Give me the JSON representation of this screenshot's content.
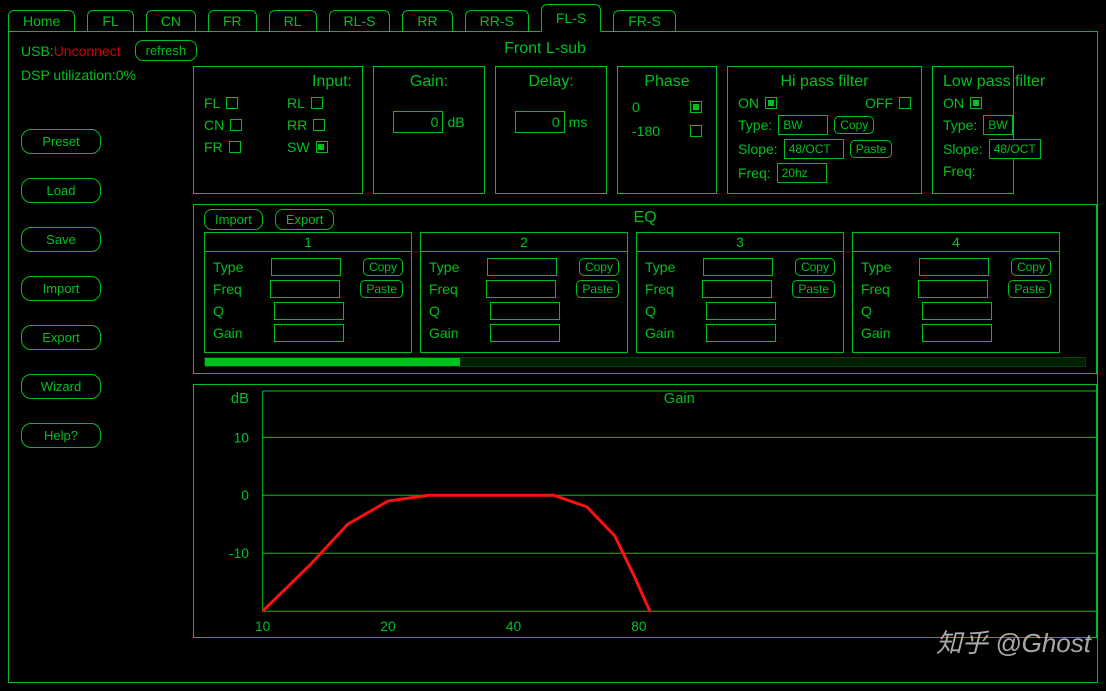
{
  "colors": {
    "fg": "#00c020",
    "bg": "#000000",
    "alert": "#d00000",
    "curve": "#ff1010",
    "grid": "#00c020",
    "watermark": "#bbbbbb"
  },
  "tabs": {
    "items": [
      "Home",
      "FL",
      "CN",
      "FR",
      "RL",
      "RL-S",
      "RR",
      "RR-S",
      "FL-S",
      "FR-S"
    ],
    "active_index": 8
  },
  "status": {
    "usb_label": "USB:",
    "usb_value": "Unconnect",
    "refresh": "refresh",
    "dsp_label": "DSP utilization:",
    "dsp_value": "0%"
  },
  "sidebar": [
    "Preset",
    "Load",
    "Save",
    "Import",
    "Export",
    "Wizard",
    "Help?"
  ],
  "channel_title": "Front L-sub",
  "input_panel": {
    "title": "Input:",
    "items": [
      {
        "label": "FL",
        "checked": false
      },
      {
        "label": "RL",
        "checked": false
      },
      {
        "label": "CN",
        "checked": false
      },
      {
        "label": "RR",
        "checked": false
      },
      {
        "label": "FR",
        "checked": false
      },
      {
        "label": "SW",
        "checked": true
      }
    ]
  },
  "gain_panel": {
    "title": "Gain:",
    "value": "0",
    "unit": "dB"
  },
  "delay_panel": {
    "title": "Delay:",
    "value": "0",
    "unit": "ms"
  },
  "phase_panel": {
    "title": "Phase",
    "options": [
      {
        "label": "0",
        "checked": true
      },
      {
        "label": "-180",
        "checked": false
      }
    ]
  },
  "hipass": {
    "title": "Hi pass filter",
    "on_label": "ON",
    "off_label": "OFF",
    "on": true,
    "type_label": "Type:",
    "type_value": "BW",
    "slope_label": "Slope:",
    "slope_value": "48/OCT",
    "freq_label": "Freq:",
    "freq_value": "20hz",
    "copy": "Copy",
    "paste": "Paste"
  },
  "lowpass": {
    "title": "Low pass filter",
    "on_label": "ON",
    "on": true,
    "type_label": "Type:",
    "type_value": "BW",
    "slope_label": "Slope:",
    "slope_value": "48/OCT",
    "freq_label": "Freq:"
  },
  "eq": {
    "title": "EQ",
    "import": "Import",
    "export": "Export",
    "band_labels": {
      "type": "Type",
      "freq": "Freq",
      "q": "Q",
      "gain": "Gain"
    },
    "copy": "Copy",
    "paste": "Paste",
    "band_count": 4
  },
  "chart": {
    "title": "Gain",
    "y_label": "dB",
    "y_ticks": [
      10,
      0,
      -10
    ],
    "x_ticks": [
      10,
      20,
      40,
      80
    ],
    "y_range": [
      -20,
      18
    ],
    "curve_x": [
      10,
      13,
      16,
      20,
      25,
      35,
      50,
      60,
      70,
      78,
      85
    ],
    "curve_y": [
      -20,
      -12,
      -5,
      -1,
      0,
      0,
      0,
      -2,
      -7,
      -14,
      -20
    ],
    "curve_color": "#ff1010",
    "curve_width": 3
  },
  "watermark": "知乎 @Ghost"
}
